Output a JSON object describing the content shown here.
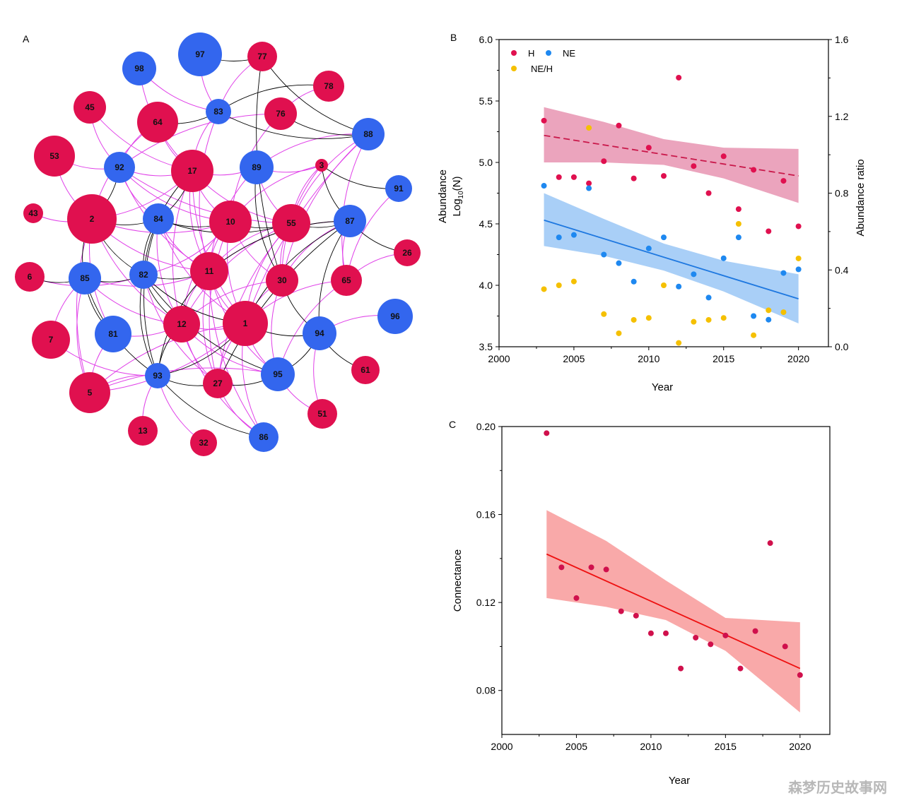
{
  "panels": {
    "a": "A",
    "b": "B",
    "c": "C"
  },
  "watermark": "森梦历史故事网",
  "colors": {
    "H": "#e0104f",
    "NE": "#3366ee",
    "ratio": "#f5c000",
    "edge_neg": "#e040e8",
    "edge_pos": "#000000",
    "B_H_line": "#c9184a",
    "B_H_band": "#eba4bd",
    "B_NE_line": "#1e78e0",
    "B_NE_band": "#a9cff7",
    "C_line": "#ee1111",
    "C_band": "#f9a9a9",
    "C_points": "#d0104c"
  },
  "network": {
    "nodes": [
      {
        "id": "97",
        "group": "NE"
      },
      {
        "id": "77",
        "group": "H"
      },
      {
        "id": "98",
        "group": "NE"
      },
      {
        "id": "78",
        "group": "H"
      },
      {
        "id": "45",
        "group": "H"
      },
      {
        "id": "64",
        "group": "H"
      },
      {
        "id": "83",
        "group": "NE"
      },
      {
        "id": "76",
        "group": "H"
      },
      {
        "id": "88",
        "group": "NE"
      },
      {
        "id": "53",
        "group": "H"
      },
      {
        "id": "92",
        "group": "NE"
      },
      {
        "id": "17",
        "group": "H"
      },
      {
        "id": "89",
        "group": "NE"
      },
      {
        "id": "3",
        "group": "H"
      },
      {
        "id": "91",
        "group": "NE"
      },
      {
        "id": "43",
        "group": "H"
      },
      {
        "id": "2",
        "group": "H"
      },
      {
        "id": "84",
        "group": "NE"
      },
      {
        "id": "10",
        "group": "H"
      },
      {
        "id": "55",
        "group": "H"
      },
      {
        "id": "87",
        "group": "NE"
      },
      {
        "id": "26",
        "group": "H"
      },
      {
        "id": "6",
        "group": "H"
      },
      {
        "id": "85",
        "group": "NE"
      },
      {
        "id": "82",
        "group": "NE"
      },
      {
        "id": "11",
        "group": "H"
      },
      {
        "id": "30",
        "group": "H"
      },
      {
        "id": "65",
        "group": "H"
      },
      {
        "id": "96",
        "group": "NE"
      },
      {
        "id": "7",
        "group": "H"
      },
      {
        "id": "81",
        "group": "NE"
      },
      {
        "id": "12",
        "group": "H"
      },
      {
        "id": "1",
        "group": "H"
      },
      {
        "id": "94",
        "group": "NE"
      },
      {
        "id": "61",
        "group": "H"
      },
      {
        "id": "93",
        "group": "NE"
      },
      {
        "id": "27",
        "group": "H"
      },
      {
        "id": "95",
        "group": "NE"
      },
      {
        "id": "5",
        "group": "H"
      },
      {
        "id": "51",
        "group": "H"
      },
      {
        "id": "13",
        "group": "H"
      },
      {
        "id": "32",
        "group": "H"
      },
      {
        "id": "86",
        "group": "NE"
      }
    ],
    "edges_pos": [
      [
        "97",
        "77"
      ],
      [
        "77",
        "88"
      ],
      [
        "77",
        "30"
      ],
      [
        "78",
        "83"
      ],
      [
        "76",
        "88"
      ],
      [
        "83",
        "88"
      ],
      [
        "64",
        "83"
      ],
      [
        "2",
        "85"
      ],
      [
        "2",
        "82"
      ],
      [
        "2",
        "84"
      ],
      [
        "2",
        "92"
      ],
      [
        "85",
        "81"
      ],
      [
        "85",
        "82"
      ],
      [
        "85",
        "93"
      ],
      [
        "6",
        "85"
      ],
      [
        "82",
        "11"
      ],
      [
        "82",
        "12"
      ],
      [
        "82",
        "93"
      ],
      [
        "84",
        "82"
      ],
      [
        "84",
        "10"
      ],
      [
        "84",
        "55"
      ],
      [
        "84",
        "17"
      ],
      [
        "17",
        "82"
      ],
      [
        "10",
        "55"
      ],
      [
        "55",
        "87"
      ],
      [
        "87",
        "26"
      ],
      [
        "87",
        "11"
      ],
      [
        "87",
        "1"
      ],
      [
        "87",
        "27"
      ],
      [
        "87",
        "94"
      ],
      [
        "3",
        "87"
      ],
      [
        "3",
        "91"
      ],
      [
        "11",
        "93"
      ],
      [
        "12",
        "93"
      ],
      [
        "93",
        "27"
      ],
      [
        "93",
        "86"
      ],
      [
        "93",
        "1"
      ],
      [
        "27",
        "95"
      ],
      [
        "95",
        "94"
      ],
      [
        "94",
        "61"
      ],
      [
        "1",
        "94"
      ],
      [
        "30",
        "94"
      ],
      [
        "89",
        "30"
      ],
      [
        "82",
        "95"
      ],
      [
        "84",
        "93"
      ],
      [
        "82",
        "1"
      ]
    ],
    "edges_neg": [
      [
        "97",
        "83"
      ],
      [
        "77",
        "83"
      ],
      [
        "78",
        "76"
      ],
      [
        "98",
        "17"
      ],
      [
        "45",
        "92"
      ],
      [
        "64",
        "17"
      ],
      [
        "64",
        "2"
      ],
      [
        "53",
        "92"
      ],
      [
        "92",
        "17"
      ],
      [
        "92",
        "84"
      ],
      [
        "92",
        "10"
      ],
      [
        "92",
        "55"
      ],
      [
        "17",
        "89"
      ],
      [
        "17",
        "10"
      ],
      [
        "17",
        "55"
      ],
      [
        "17",
        "11"
      ],
      [
        "17",
        "12"
      ],
      [
        "17",
        "1"
      ],
      [
        "89",
        "3"
      ],
      [
        "89",
        "11"
      ],
      [
        "89",
        "55"
      ],
      [
        "3",
        "10"
      ],
      [
        "3",
        "55"
      ],
      [
        "3",
        "30"
      ],
      [
        "88",
        "55"
      ],
      [
        "88",
        "30"
      ],
      [
        "88",
        "89"
      ],
      [
        "88",
        "1"
      ],
      [
        "88",
        "65"
      ],
      [
        "43",
        "2"
      ],
      [
        "2",
        "10"
      ],
      [
        "2",
        "11"
      ],
      [
        "2",
        "12"
      ],
      [
        "2",
        "81"
      ],
      [
        "2",
        "5"
      ],
      [
        "2",
        "17"
      ],
      [
        "84",
        "11"
      ],
      [
        "84",
        "12"
      ],
      [
        "84",
        "1"
      ],
      [
        "10",
        "11"
      ],
      [
        "10",
        "12"
      ],
      [
        "10",
        "1"
      ],
      [
        "10",
        "30"
      ],
      [
        "10",
        "27"
      ],
      [
        "55",
        "11"
      ],
      [
        "55",
        "1"
      ],
      [
        "55",
        "30"
      ],
      [
        "55",
        "27"
      ],
      [
        "55",
        "12"
      ],
      [
        "87",
        "30"
      ],
      [
        "87",
        "65"
      ],
      [
        "87",
        "11"
      ],
      [
        "6",
        "82"
      ],
      [
        "85",
        "11"
      ],
      [
        "85",
        "12"
      ],
      [
        "85",
        "7"
      ],
      [
        "85",
        "5"
      ],
      [
        "82",
        "27"
      ],
      [
        "82",
        "10"
      ],
      [
        "11",
        "12"
      ],
      [
        "11",
        "1"
      ],
      [
        "11",
        "27"
      ],
      [
        "11",
        "95"
      ],
      [
        "11",
        "86"
      ],
      [
        "30",
        "1"
      ],
      [
        "30",
        "12"
      ],
      [
        "30",
        "95"
      ],
      [
        "65",
        "1"
      ],
      [
        "65",
        "95"
      ],
      [
        "96",
        "94"
      ],
      [
        "7",
        "93"
      ],
      [
        "81",
        "12"
      ],
      [
        "81",
        "5"
      ],
      [
        "12",
        "1"
      ],
      [
        "12",
        "27"
      ],
      [
        "12",
        "95"
      ],
      [
        "12",
        "86"
      ],
      [
        "1",
        "27"
      ],
      [
        "1",
        "95"
      ],
      [
        "1",
        "86"
      ],
      [
        "1",
        "5"
      ],
      [
        "94",
        "51"
      ],
      [
        "93",
        "5"
      ],
      [
        "93",
        "13"
      ],
      [
        "93",
        "32"
      ],
      [
        "27",
        "86"
      ],
      [
        "95",
        "51"
      ],
      [
        "95",
        "5"
      ],
      [
        "5",
        "1"
      ],
      [
        "83",
        "17"
      ],
      [
        "83",
        "11"
      ],
      [
        "76",
        "10"
      ],
      [
        "76",
        "92"
      ],
      [
        "91",
        "65"
      ],
      [
        "26",
        "65"
      ],
      [
        "98",
        "83"
      ],
      [
        "64",
        "92"
      ],
      [
        "92",
        "11"
      ],
      [
        "45",
        "17"
      ],
      [
        "53",
        "2"
      ]
    ]
  },
  "chart_data": [
    {
      "panel": "B",
      "type": "scatter",
      "xlabel": "Year",
      "ylabel_line1": "Abundance",
      "ylabel_line2_prefix": "Log",
      "ylabel_line2_sub": "10",
      "ylabel_line2_suffix": "(N)",
      "y2label": "Abundance ratio",
      "xlim": [
        2000,
        2022
      ],
      "ylim": [
        3.5,
        6.0
      ],
      "y2lim": [
        0.0,
        1.6
      ],
      "xticks": [
        2000,
        2005,
        2010,
        2015,
        2020
      ],
      "xtick_labels": [
        "2000",
        "2005",
        "2010",
        "2015",
        "2020"
      ],
      "yticks": [
        3.5,
        4.0,
        4.5,
        5.0,
        5.5,
        6.0
      ],
      "ytick_labels": [
        "3.5",
        "4.0",
        "4.5",
        "5.0",
        "5.5",
        "6.0"
      ],
      "y2ticks": [
        0.0,
        0.4,
        0.8,
        1.2,
        1.6
      ],
      "y2tick_labels": [
        "0.0",
        "0.4",
        "0.8",
        "1.2",
        "1.6"
      ],
      "legend": {
        "H": "H",
        "NE": "NE",
        "ratio": "NE/H",
        "placement": "top-left"
      },
      "series": [
        {
          "name": "H",
          "axis": "left",
          "x": [
            2003,
            2004,
            2005,
            2006,
            2007,
            2008,
            2009,
            2010,
            2011,
            2012,
            2013,
            2014,
            2015,
            2016,
            2017,
            2018,
            2019,
            2020
          ],
          "y": [
            5.34,
            4.88,
            4.88,
            4.83,
            5.01,
            5.3,
            4.87,
            5.12,
            4.89,
            5.69,
            4.97,
            4.75,
            5.05,
            4.62,
            4.94,
            4.44,
            4.85,
            4.48
          ]
        },
        {
          "name": "NE",
          "axis": "left",
          "x": [
            2003,
            2004,
            2005,
            2006,
            2007,
            2008,
            2009,
            2010,
            2011,
            2012,
            2013,
            2014,
            2015,
            2016,
            2017,
            2018,
            2019,
            2020
          ],
          "y": [
            4.81,
            4.39,
            4.41,
            4.79,
            4.25,
            4.18,
            4.03,
            4.3,
            4.39,
            3.99,
            4.09,
            3.9,
            4.22,
            4.39,
            3.75,
            3.72,
            4.1,
            4.13
          ]
        },
        {
          "name": "NE/H",
          "axis": "right",
          "x": [
            2003,
            2004,
            2005,
            2006,
            2007,
            2008,
            2009,
            2010,
            2011,
            2012,
            2013,
            2014,
            2015,
            2016,
            2017,
            2018,
            2019,
            2020
          ],
          "y": [
            0.3,
            0.32,
            0.34,
            1.14,
            0.17,
            0.07,
            0.14,
            0.15,
            0.32,
            0.02,
            0.13,
            0.14,
            0.15,
            0.64,
            0.06,
            0.19,
            0.18,
            0.46
          ]
        }
      ],
      "fits": [
        {
          "series": "H",
          "style": "dashed",
          "x": [
            2003,
            2020
          ],
          "y": [
            5.22,
            4.89
          ],
          "band_x": [
            2003,
            2007,
            2011,
            2015,
            2020
          ],
          "band_upper": [
            5.45,
            5.33,
            5.19,
            5.12,
            5.11
          ],
          "band_lower": [
            5.0,
            5.0,
            4.98,
            4.87,
            4.67
          ]
        },
        {
          "series": "NE",
          "style": "solid",
          "x": [
            2003,
            2020
          ],
          "y": [
            4.53,
            3.89
          ],
          "band_x": [
            2003,
            2007,
            2011,
            2015,
            2020
          ],
          "band_upper": [
            4.75,
            4.54,
            4.34,
            4.2,
            4.09
          ],
          "band_lower": [
            4.32,
            4.24,
            4.12,
            3.95,
            3.69
          ]
        }
      ]
    },
    {
      "panel": "C",
      "type": "scatter",
      "xlabel": "Year",
      "ylabel": "Connectance",
      "xlim": [
        2000,
        2022
      ],
      "ylim": [
        0.06,
        0.2
      ],
      "xticks": [
        2000,
        2005,
        2010,
        2015,
        2020
      ],
      "xtick_labels": [
        "2000",
        "2005",
        "2010",
        "2015",
        "2020"
      ],
      "yticks": [
        0.08,
        0.12,
        0.16,
        0.2
      ],
      "ytick_labels": [
        "0.08",
        "0.12",
        "0.16",
        "0.20"
      ],
      "series": [
        {
          "name": "",
          "x": [
            2003,
            2004,
            2005,
            2006,
            2007,
            2008,
            2009,
            2010,
            2011,
            2012,
            2013,
            2014,
            2015,
            2016,
            2017,
            2018,
            2019,
            2020
          ],
          "y": [
            0.197,
            0.136,
            0.122,
            0.136,
            0.135,
            0.116,
            0.114,
            0.106,
            0.106,
            0.09,
            0.104,
            0.101,
            0.105,
            0.09,
            0.107,
            0.147,
            0.1,
            0.087
          ]
        }
      ],
      "fits": [
        {
          "series": "",
          "style": "solid",
          "x": [
            2003,
            2020
          ],
          "y": [
            0.142,
            0.09
          ],
          "band_x": [
            2003,
            2007,
            2011,
            2015,
            2020
          ],
          "band_upper": [
            0.162,
            0.148,
            0.13,
            0.113,
            0.111
          ],
          "band_lower": [
            0.122,
            0.118,
            0.112,
            0.098,
            0.07
          ]
        }
      ]
    }
  ]
}
